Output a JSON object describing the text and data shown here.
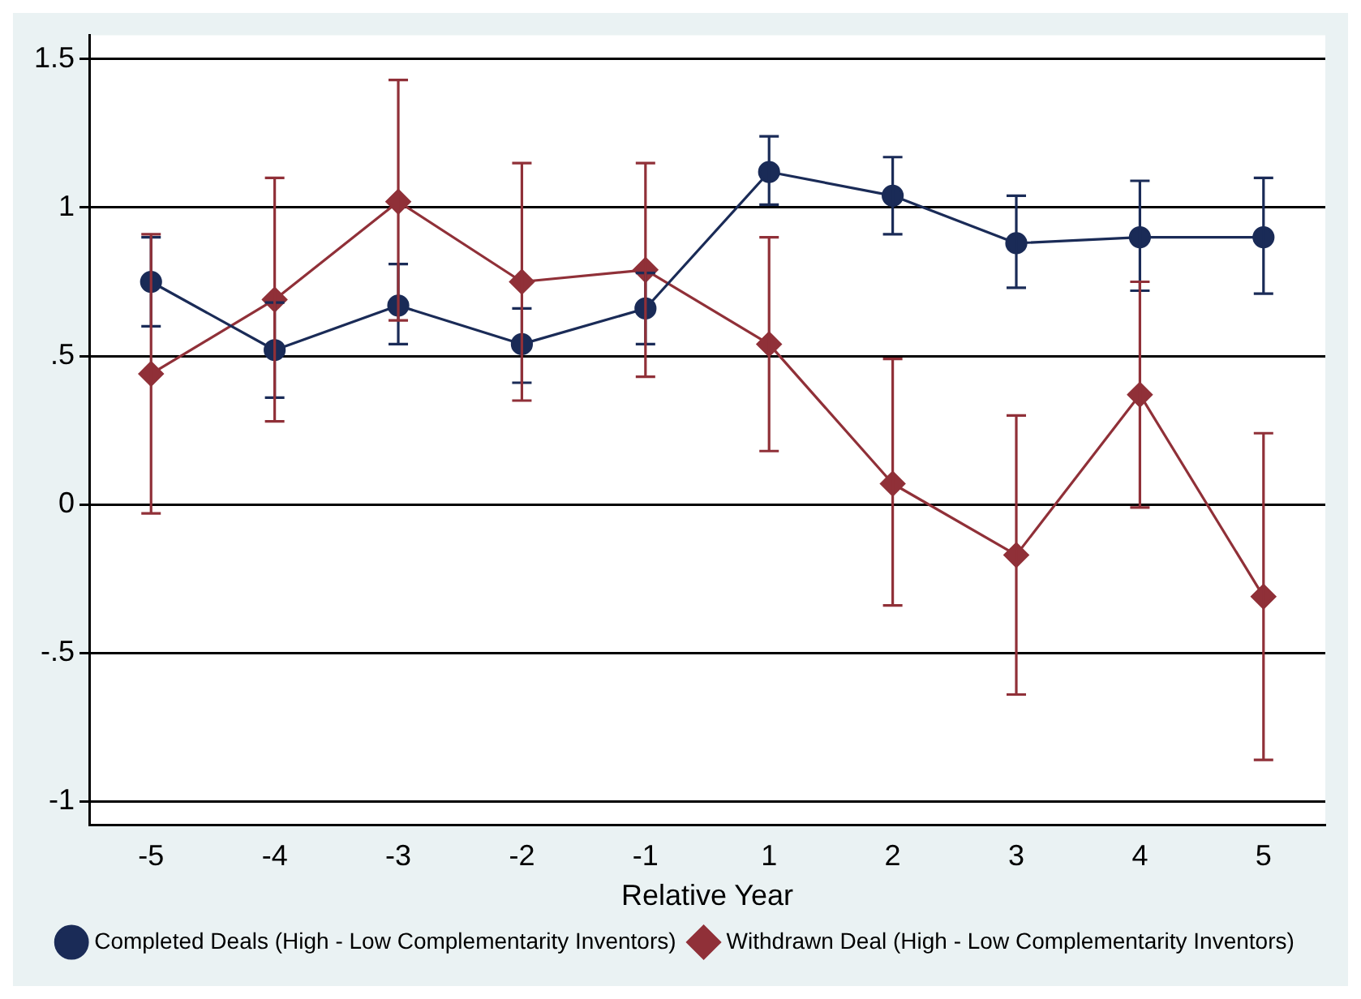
{
  "chart_data": {
    "type": "line",
    "xlabel": "Relative Year",
    "categories": [
      "-5",
      "-4",
      "-3",
      "-2",
      "-1",
      "1",
      "2",
      "3",
      "4",
      "5"
    ],
    "series": [
      {
        "name": "Completed Deals (High - Low Complementarity Inventors)",
        "color": "#1a2b57",
        "marker": "circle",
        "values": [
          0.75,
          0.52,
          0.67,
          0.54,
          0.66,
          1.12,
          1.04,
          0.88,
          0.9,
          0.9
        ],
        "errors": [
          [
            0.6,
            0.9
          ],
          [
            0.36,
            0.68
          ],
          [
            0.54,
            0.81
          ],
          [
            0.41,
            0.66
          ],
          [
            0.54,
            0.78
          ],
          [
            1.01,
            1.24
          ],
          [
            0.91,
            1.17
          ],
          [
            0.73,
            1.04
          ],
          [
            0.72,
            1.09
          ],
          [
            0.71,
            1.1
          ]
        ]
      },
      {
        "name": "Withdrawn Deal (High - Low Complementarity Inventors)",
        "color": "#903038",
        "marker": "diamond",
        "values": [
          0.44,
          0.69,
          1.02,
          0.75,
          0.79,
          0.54,
          0.07,
          -0.17,
          0.37,
          -0.31
        ],
        "errors": [
          [
            -0.03,
            0.91
          ],
          [
            0.28,
            1.1
          ],
          [
            0.62,
            1.43
          ],
          [
            0.35,
            1.15
          ],
          [
            0.43,
            1.15
          ],
          [
            0.18,
            0.9
          ],
          [
            -0.34,
            0.49
          ],
          [
            -0.64,
            0.3
          ],
          [
            -0.01,
            0.75
          ],
          [
            -0.86,
            0.24
          ]
        ]
      }
    ],
    "ylim": [
      -1.08,
      1.58
    ],
    "yticks": [
      -1,
      {
        "value": -0.5,
        "label": "-.5"
      },
      0,
      {
        "value": 0.5,
        "label": ".5"
      },
      1,
      1.5
    ],
    "grid": "y",
    "legend": "bottom",
    "line_style": "solid"
  }
}
